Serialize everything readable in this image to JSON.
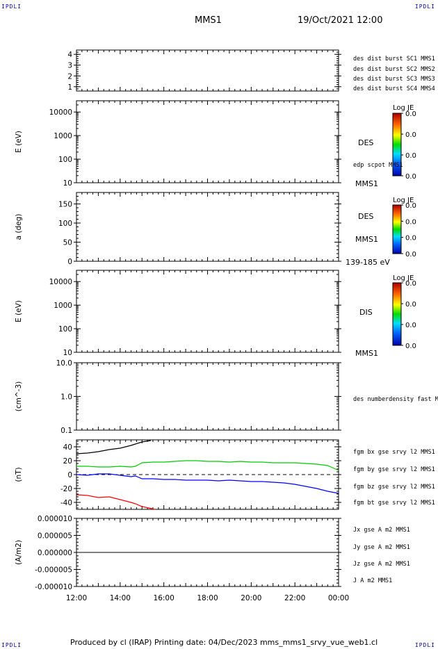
{
  "corners": {
    "top_left": "IPDLI",
    "top_right": "IPDLI",
    "bottom_left": "IPDLI",
    "bottom_right": "IPDLI"
  },
  "header": {
    "spacecraft": "MMS1",
    "datetime": "19/Oct/2021 12:00"
  },
  "footer": {
    "text": "Produced by cl (IRAP)   Printing date: 04/Dec/2023   mms_mms1_srvy_vue_web1.cl"
  },
  "time_axis": {
    "ticks": [
      "12:00",
      "14:00",
      "16:00",
      "18:00",
      "20:00",
      "22:00",
      "00:00"
    ]
  },
  "panels": {
    "p1": {
      "legend": [
        {
          "text": "des dist burst SC1 MMS1",
          "color": "#0000ff"
        },
        {
          "text": "des dist burst SC2 MMS2",
          "color": "#cc00cc"
        },
        {
          "text": "des dist burst SC3 MMS3",
          "color": "#ff0000"
        },
        {
          "text": "des dist burst SC4 MMS4",
          "color": "#00cc00"
        }
      ]
    },
    "p2": {
      "ylabel": "E (eV)",
      "name": "DES",
      "extra": "edp scpot MMS1",
      "sc": "MMS1",
      "cbar_title": "Log JE"
    },
    "p3": {
      "ylabel": "a (deg)",
      "name": "DES",
      "sc": "MMS1",
      "range": "139-185 eV",
      "cbar_title": "Log JE"
    },
    "p4": {
      "ylabel": "E (eV)",
      "name": "DIS",
      "sc": "MMS1",
      "cbar_title": "Log JE"
    },
    "p5": {
      "ylabel": "(cm^-3)",
      "legend": [
        {
          "text": "des numberdensity fast M",
          "color": "#000000"
        }
      ]
    },
    "p6": {
      "ylabel": "(nT)",
      "legend": [
        {
          "text": "fgm bx gse srvy l2 MMS1",
          "color": "#ff0000"
        },
        {
          "text": "fgm by gse srvy l2 MMS1",
          "color": "#00cc00"
        },
        {
          "text": "fgm bz gse srvy l2 MMS1",
          "color": "#0000ff"
        },
        {
          "text": "fgm bt gse srvy l2 MMS1",
          "color": "#000000"
        }
      ]
    },
    "p7": {
      "ylabel": "(A/m2)",
      "legend": [
        {
          "text": "Jx gse A m2 MMS1",
          "color": "#ff0000"
        },
        {
          "text": "Jy gse A m2 MMS1",
          "color": "#00cc00"
        },
        {
          "text": "Jz gse A m2 MMS1",
          "color": "#0000ff"
        },
        {
          "text": "J A m2 MMS1",
          "color": "#000000"
        }
      ]
    }
  },
  "chart_data": [
    {
      "type": "line",
      "panel": "p1",
      "ylim": [
        0.6,
        4.4
      ],
      "yticks": [
        "1",
        "2",
        "3",
        "4"
      ],
      "series": []
    },
    {
      "type": "heatmap",
      "panel": "p2",
      "ylabel": "E (eV)",
      "yscale": "log",
      "ylim": [
        10,
        30000
      ],
      "yticks": [
        "10",
        "100",
        "1000",
        "10000"
      ],
      "colorbar": {
        "title": "Log JE",
        "ticks": [
          "0.0",
          "0.0",
          "0.0",
          "0.0"
        ]
      }
    },
    {
      "type": "heatmap",
      "panel": "p3",
      "ylabel": "a (deg)",
      "ylim": [
        0,
        180
      ],
      "yticks": [
        "0",
        "50",
        "100",
        "150"
      ],
      "colorbar": {
        "title": "Log JE",
        "ticks": [
          "0.0",
          "0.0",
          "0.0",
          "0.0"
        ]
      }
    },
    {
      "type": "heatmap",
      "panel": "p4",
      "ylabel": "E (eV)",
      "yscale": "log",
      "ylim": [
        10,
        30000
      ],
      "yticks": [
        "10",
        "100",
        "1000",
        "10000"
      ],
      "colorbar": {
        "title": "Log JE",
        "ticks": [
          "0.0",
          "0.0",
          "0.0",
          "0.0"
        ]
      }
    },
    {
      "type": "line",
      "panel": "p5",
      "ylabel": "(cm^-3)",
      "yscale": "log",
      "ylim": [
        0.1,
        10
      ],
      "yticks": [
        "0.1",
        "1.0",
        "10.0"
      ],
      "series": []
    },
    {
      "type": "line",
      "panel": "p6",
      "ylabel": "(nT)",
      "ylim": [
        -50,
        50
      ],
      "yticks": [
        "-40",
        "-20",
        "0",
        "20",
        "40"
      ],
      "zero_line": "dashed",
      "x_hours": [
        0,
        0.5,
        1,
        1.5,
        2,
        2.5,
        2.7,
        3,
        3.5,
        4,
        4.5,
        5,
        5.5,
        6,
        6.5,
        7,
        7.5,
        8,
        8.5,
        9,
        9.5,
        10,
        10.5,
        11,
        11.5,
        12
      ],
      "series": [
        {
          "name": "fgm bt gse srvy l2 MMS1",
          "color": "#000000",
          "x": [
            0,
            0.5,
            1,
            1.5,
            2,
            2.5,
            2.7,
            3,
            3.4
          ],
          "y": [
            30,
            31,
            33,
            36,
            38,
            42,
            44,
            47,
            49
          ]
        },
        {
          "name": "fgm bx gse srvy l2 MMS1",
          "color": "#ff0000",
          "x": [
            0,
            0.5,
            1,
            1.5,
            2,
            2.5,
            2.7,
            3,
            3.6
          ],
          "y": [
            -29,
            -30,
            -33,
            -32,
            -36,
            -40,
            -42,
            -46,
            -50
          ]
        },
        {
          "name": "fgm by gse srvy l2 MMS1",
          "color": "#00cc00",
          "x": [
            0,
            0.5,
            1,
            1.5,
            2,
            2.5,
            2.7,
            3,
            3.5,
            4,
            4.5,
            5,
            5.5,
            6,
            6.5,
            7,
            7.5,
            8,
            8.5,
            9,
            9.5,
            10,
            10.5,
            11,
            11.5,
            12
          ],
          "y": [
            12,
            12,
            11,
            11,
            12,
            11,
            12,
            17,
            18,
            18,
            19,
            20,
            20,
            19,
            19,
            18,
            19,
            18,
            18,
            17,
            17,
            17,
            16,
            15,
            13,
            6
          ]
        },
        {
          "name": "fgm bz gse srvy l2 MMS1",
          "color": "#0000ff",
          "x": [
            0,
            0.5,
            1,
            1.5,
            2,
            2.5,
            2.7,
            3,
            3.5,
            4,
            4.5,
            5,
            5.5,
            6,
            6.5,
            7,
            7.5,
            8,
            8.5,
            9,
            9.5,
            10,
            10.5,
            11,
            11.5,
            12
          ],
          "y": [
            0,
            -1,
            1,
            1,
            -1,
            -3,
            -2,
            -6,
            -6,
            -7,
            -7,
            -8,
            -8,
            -8,
            -9,
            -8,
            -9,
            -10,
            -10,
            -11,
            -12,
            -14,
            -17,
            -20,
            -24,
            -27
          ]
        }
      ]
    },
    {
      "type": "line",
      "panel": "p7",
      "ylabel": "(A/m2)",
      "ylim": [
        -1e-05,
        1e-05
      ],
      "yticks": [
        "-0.000010",
        "-0.000005",
        "0.000000",
        "0.000005",
        "0.000010"
      ],
      "series": [
        {
          "name": "J A m2 MMS1",
          "color": "#000000",
          "x": [
            0,
            12
          ],
          "y": [
            0,
            0
          ]
        }
      ]
    }
  ]
}
